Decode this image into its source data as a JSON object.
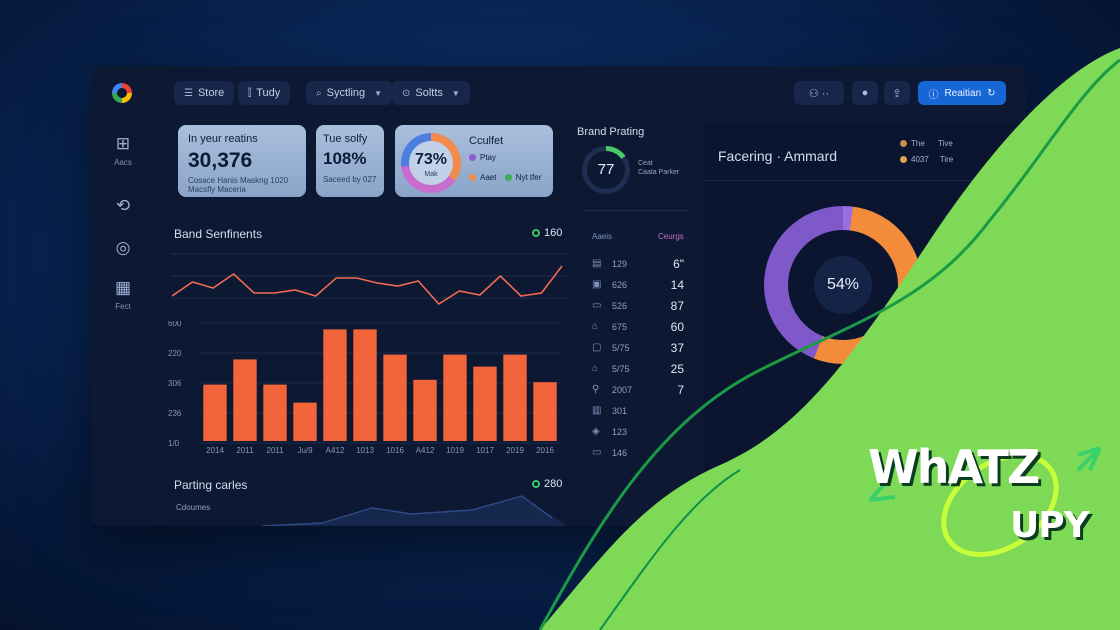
{
  "toolbar": {
    "tabs": [
      {
        "icon": "list-icon",
        "label": "Store"
      },
      {
        "icon": "chart-icon",
        "label": "Tudy"
      },
      {
        "icon": "search-icon",
        "label": "Syctling"
      },
      {
        "icon": "filter-icon",
        "label": "Soltts"
      }
    ],
    "primary_label": "Reaitian"
  },
  "sidebar": {
    "items": [
      {
        "icon": "grid-icon",
        "label": "Aacs"
      },
      {
        "icon": "sync-icon",
        "label": ""
      },
      {
        "icon": "wifi-icon",
        "label": ""
      },
      {
        "icon": "table-icon",
        "label": "Fect"
      }
    ]
  },
  "cards": {
    "card1": {
      "title": "In yeur reatins",
      "value": "30,376",
      "sub1": "Cosace Hanis Maskng 1020",
      "sub2": "Macsfly Maceria"
    },
    "card2": {
      "title": "Tue solfy",
      "value": "108%",
      "sub": "Saceed by 027"
    },
    "card3": {
      "value": "73%",
      "center_sub": "Mak",
      "title": "Cculfet",
      "legend": [
        "Ptay",
        "Aaet",
        "Nyt tfer"
      ]
    }
  },
  "brand_rating": {
    "title": "Brand Prating",
    "value": "77",
    "line1": "Ceat",
    "line2": "Caata Parker"
  },
  "sentiments": {
    "title": "Band Senfinents",
    "badge": "160",
    "line_points": [
      48,
      34,
      40,
      26,
      45,
      45,
      42,
      48,
      30,
      30,
      35,
      38,
      33,
      56,
      43,
      47,
      28,
      48,
      45,
      18
    ],
    "y_ticks": [
      "600",
      "220",
      "306",
      "236",
      "1/0"
    ],
    "bars": [
      {
        "label": "2014",
        "value": 0.47
      },
      {
        "label": "2011",
        "value": 0.68
      },
      {
        "label": "2011",
        "value": 0.47
      },
      {
        "label": "Ju/9",
        "value": 0.32
      },
      {
        "label": "A412",
        "value": 0.93
      },
      {
        "label": "1013",
        "value": 0.93
      },
      {
        "label": "1016",
        "value": 0.72
      },
      {
        "label": "A412",
        "value": 0.51
      },
      {
        "label": "1019",
        "value": 0.72
      },
      {
        "label": "1017",
        "value": 0.62
      },
      {
        "label": "2019",
        "value": 0.72
      },
      {
        "label": "2016",
        "value": 0.49
      }
    ]
  },
  "parting": {
    "title": "Parting carles",
    "badge": "280",
    "sub": "Cdoumes"
  },
  "table": {
    "headers": [
      "Aaeis",
      "Ceurgs"
    ],
    "rows": [
      {
        "label": "129",
        "value": "6\""
      },
      {
        "label": "626",
        "value": "14"
      },
      {
        "label": "526",
        "value": "87"
      },
      {
        "label": "675",
        "value": "60"
      },
      {
        "label": "5/75",
        "value": "37"
      },
      {
        "label": "5/75",
        "value": "25"
      },
      {
        "label": "2007",
        "value": "7"
      },
      {
        "label": "301",
        "value": ""
      },
      {
        "label": "123",
        "value": ""
      },
      {
        "label": "146",
        "value": ""
      }
    ]
  },
  "facing": {
    "title": "Facering · Ammard",
    "legend": [
      {
        "a": "The",
        "b": "Tive"
      },
      {
        "a": "4037",
        "b": "Tire"
      }
    ],
    "percent": "54%"
  },
  "logo": {
    "line1": "WhATZ",
    "line2": "UPY"
  },
  "colors": {
    "accent": "#1766d6",
    "bar": "#f2643a",
    "line": "#f26a52",
    "green": "#7ed957"
  }
}
